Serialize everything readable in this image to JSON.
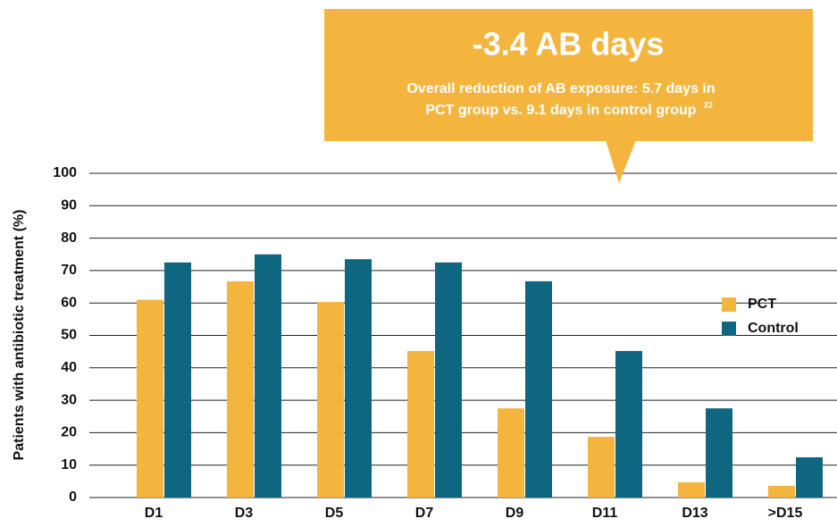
{
  "chart_data": {
    "type": "bar",
    "y_label": "Patients with antibiotic treatment (%)",
    "annotation": {
      "title": "-3.4 AB days",
      "lines": [
        "Overall reduction of AB exposure: 5.7 days in",
        "PCT group vs. 9.1 days in control group"
      ],
      "ref": "22",
      "color": "#f4b53f"
    },
    "categories": [
      "D1",
      "D3",
      "D5",
      "D7",
      "D9",
      "D11",
      "D13",
      ">D15"
    ],
    "series": [
      {
        "name": "PCT",
        "color": "#f4b53f",
        "values": [
          61,
          66.7,
          60.3,
          45.2,
          27.5,
          18.7,
          4.7,
          3.6
        ]
      },
      {
        "name": "Control",
        "color": "#0f6680",
        "values": [
          72.5,
          75,
          73.5,
          72.5,
          66.7,
          45.2,
          27.5,
          12.4
        ]
      }
    ],
    "ylim": [
      0,
      100
    ],
    "yticks": [
      0,
      10,
      20,
      30,
      40,
      50,
      60,
      70,
      80,
      90,
      100
    ],
    "grid": true,
    "legend": "right"
  }
}
